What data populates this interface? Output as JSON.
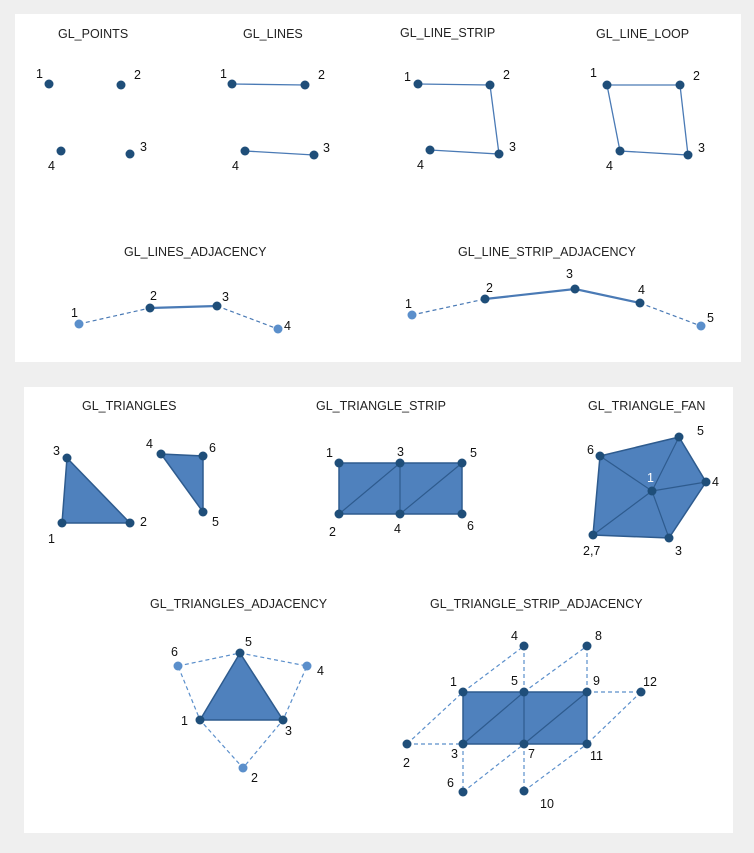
{
  "colors": {
    "background": "#efefef",
    "panel": "#ffffff",
    "vertex": "#1f4e79",
    "vertex_adjacent": "#5b8fcb",
    "edge": "#4a7ab5",
    "fill": "#4f81bd",
    "fill_edge": "#2e5b8e",
    "label": "#111111"
  },
  "top_panel": {
    "points": {
      "title": "GL_POINTS",
      "labels": [
        "1",
        "2",
        "3",
        "4"
      ]
    },
    "lines": {
      "title": "GL_LINES",
      "labels": [
        "1",
        "2",
        "3",
        "4"
      ]
    },
    "line_strip": {
      "title": "GL_LINE_STRIP",
      "labels": [
        "1",
        "2",
        "3",
        "4"
      ]
    },
    "line_loop": {
      "title": "GL_LINE_LOOP",
      "labels": [
        "1",
        "2",
        "3",
        "4"
      ]
    },
    "lines_adjacency": {
      "title": "GL_LINES_ADJACENCY",
      "labels": [
        "1",
        "2",
        "3",
        "4"
      ]
    },
    "line_strip_adjacency": {
      "title": "GL_LINE_STRIP_ADJACENCY",
      "labels": [
        "1",
        "2",
        "3",
        "4",
        "5"
      ]
    }
  },
  "bottom_panel": {
    "triangles": {
      "title": "GL_TRIANGLES",
      "labels": [
        "1",
        "2",
        "3",
        "4",
        "5",
        "6"
      ]
    },
    "triangle_strip": {
      "title": "GL_TRIANGLE_STRIP",
      "labels": [
        "1",
        "2",
        "3",
        "4",
        "5",
        "6"
      ]
    },
    "triangle_fan": {
      "title": "GL_TRIANGLE_FAN",
      "labels": [
        "1",
        "2,7",
        "3",
        "4",
        "5",
        "6"
      ]
    },
    "triangles_adjacency": {
      "title": "GL_TRIANGLES_ADJACENCY",
      "labels": [
        "1",
        "2",
        "3",
        "4",
        "5",
        "6"
      ]
    },
    "triangle_strip_adjacency": {
      "title": "GL_TRIANGLE_STRIP_ADJACENCY",
      "labels": [
        "1",
        "2",
        "3",
        "4",
        "5",
        "6",
        "7",
        "8",
        "9",
        "10",
        "11",
        "12"
      ]
    }
  }
}
